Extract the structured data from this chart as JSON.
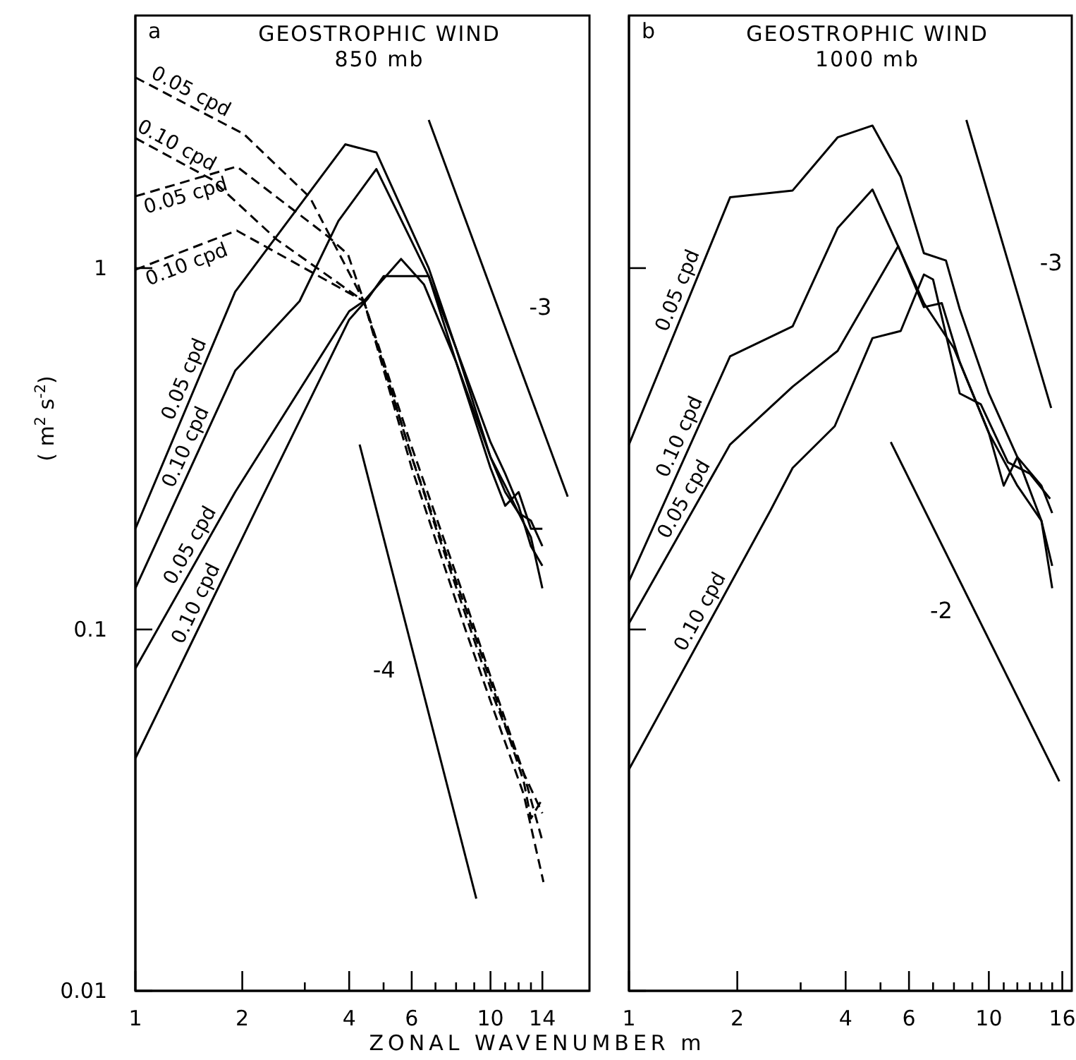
{
  "chart_data": [
    {
      "type": "line",
      "title": "GEOSTROPHIC WIND",
      "subtitle": "850 mb",
      "xlabel": "ZONAL WAVENUMBER  m",
      "ylabel": "( m$^{2}$ s$^{-2}$)",
      "log": "xy",
      "xlim": [
        1,
        19
      ],
      "ylim": [
        0.01,
        5
      ],
      "xticks": [
        1,
        2,
        {
          "value": 3,
          "label": null
        },
        4,
        {
          "value": 5,
          "label": null
        },
        6,
        {
          "value": 7,
          "label": null
        },
        {
          "value": 8,
          "label": null
        },
        {
          "value": 9,
          "label": null
        },
        10,
        {
          "value": 11,
          "label": null
        },
        {
          "value": 12,
          "label": null
        },
        {
          "value": 13,
          "label": null
        },
        14
      ],
      "yticks": [
        0.01,
        0.1,
        1
      ],
      "grid": false,
      "marker": "none",
      "annotations": [
        "a"
      ],
      "series": [
        {
          "name": "0.05 cpd",
          "color": "#000000",
          "x": [
            1,
            1.91,
            3.9,
            4.77,
            6.7,
            8,
            10,
            11,
            12,
            13,
            14
          ],
          "values": [
            0.19,
            0.86,
            2.2,
            2.09,
            1.0,
            0.6,
            0.33,
            0.27,
            0.22,
            0.17,
            0.15
          ]
        },
        {
          "name": "0.10 cpd",
          "color": "#000000",
          "x": [
            1,
            1.91,
            2.9,
            3.73,
            4.77,
            6.7,
            8,
            10,
            11,
            12,
            13,
            14
          ],
          "values": [
            0.13,
            0.52,
            0.81,
            1.35,
            1.88,
            0.95,
            0.6,
            0.3,
            0.25,
            0.21,
            0.18,
            0.13
          ]
        },
        {
          "name": "0.05 cpd",
          "color": "#000000",
          "x": [
            1,
            1.91,
            4,
            4.4,
            5.6,
            6.5,
            8,
            10,
            11,
            12,
            13,
            14
          ],
          "values": [
            0.078,
            0.24,
            0.76,
            0.81,
            1.06,
            0.9,
            0.55,
            0.3,
            0.24,
            0.21,
            0.2,
            0.17
          ]
        },
        {
          "name": "0.10 cpd",
          "color": "#000000",
          "x": [
            1,
            2.2,
            4,
            4.5,
            5,
            6.7,
            8,
            10,
            11,
            12,
            13,
            14
          ],
          "values": [
            0.044,
            0.217,
            0.72,
            0.82,
            0.95,
            0.95,
            0.55,
            0.28,
            0.22,
            0.24,
            0.19,
            0.19
          ]
        },
        {
          "name": "0.05 cpd",
          "color": "#000000",
          "line_style": "dashed",
          "x": [
            1,
            2.02,
            3.1,
            4.4,
            6,
            8.5,
            10.2,
            12.4,
            14.1
          ],
          "values": [
            3.37,
            2.35,
            1.57,
            0.81,
            0.28,
            0.1,
            0.06,
            0.035,
            0.02
          ]
        },
        {
          "name": "0.10 cpd",
          "color": "#000000",
          "line_style": "dashed",
          "x": [
            1,
            1.64,
            2.5,
            4.4,
            6,
            8.5,
            10.2,
            12.4,
            14
          ],
          "values": [
            2.29,
            1.76,
            1.2,
            0.81,
            0.3,
            0.11,
            0.065,
            0.04,
            0.026
          ]
        },
        {
          "name": "0.05 cpd",
          "color": "#000000",
          "line_style": "dashed",
          "x": [
            1,
            1.93,
            3.5,
            3.97,
            4.4,
            6,
            8.5,
            10.2,
            12.4,
            14
          ],
          "values": [
            1.58,
            1.91,
            1.22,
            1.09,
            0.81,
            0.32,
            0.12,
            0.07,
            0.04,
            0.031
          ]
        },
        {
          "name": "0.10 cpd",
          "color": "#000000",
          "line_style": "dashed",
          "x": [
            1,
            1.93,
            4.4,
            6,
            8.5,
            10.2,
            12.4,
            13,
            14
          ],
          "values": [
            0.99,
            1.27,
            0.81,
            0.3,
            0.115,
            0.068,
            0.038,
            0.03,
            0.034
          ]
        },
        {
          "name": "-3",
          "color": "#000000",
          "x": [
            6.7,
            16.5
          ],
          "values": [
            2.57,
            0.233
          ]
        },
        {
          "name": "-4",
          "color": "#000000",
          "x": [
            4.28,
            9.12
          ],
          "values": [
            0.325,
            0.018
          ]
        }
      ]
    },
    {
      "type": "line",
      "title": "GEOSTROPHIC WIND",
      "subtitle": "1000 mb",
      "log": "xy",
      "xlim": [
        1,
        17
      ],
      "ylim": [
        0.01,
        5
      ],
      "xticks": [
        1,
        2,
        {
          "value": 3,
          "label": null
        },
        4,
        {
          "value": 5,
          "label": null
        },
        6,
        {
          "value": 7,
          "label": null
        },
        {
          "value": 8,
          "label": null
        },
        {
          "value": 9,
          "label": null
        },
        10,
        {
          "value": 11,
          "label": null
        },
        {
          "value": 12,
          "label": null
        },
        {
          "value": 13,
          "label": null
        },
        {
          "value": 14,
          "label": null
        },
        {
          "value": 15,
          "label": null
        },
        16
      ],
      "yticks": [
        0.01,
        0.1,
        1
      ],
      "tick_labels": "x",
      "grid": false,
      "marker": "none",
      "annotations": [
        "b"
      ],
      "series": [
        {
          "name": "0.05 cpd",
          "color": "#000000",
          "x": [
            1,
            1.91,
            2.85,
            3.8,
            4.75,
            5.69,
            6.6,
            7.6,
            8.3,
            10,
            12,
            14,
            15
          ],
          "values": [
            0.325,
            1.57,
            1.64,
            2.3,
            2.48,
            1.79,
            1.1,
            1.05,
            0.77,
            0.45,
            0.3,
            0.2,
            0.15
          ]
        },
        {
          "name": "0.10 cpd",
          "color": "#000000",
          "x": [
            1,
            1.91,
            2.85,
            3.8,
            4.75,
            6.6,
            8,
            10,
            12,
            14,
            15
          ],
          "values": [
            0.136,
            0.57,
            0.69,
            1.29,
            1.65,
            0.8,
            0.6,
            0.35,
            0.25,
            0.2,
            0.13
          ]
        },
        {
          "name": "0.05 cpd",
          "color": "#000000",
          "x": [
            1,
            1.91,
            2.85,
            3.8,
            5.6,
            6.6,
            7.4,
            8.3,
            10,
            11,
            12,
            14,
            15
          ],
          "values": [
            0.104,
            0.325,
            0.47,
            0.59,
            1.15,
            0.78,
            0.8,
            0.55,
            0.35,
            0.25,
            0.3,
            0.25,
            0.21
          ]
        },
        {
          "name": "0.10 cpd",
          "color": "#000000",
          "x": [
            1,
            2.47,
            2.85,
            3.73,
            4.75,
            5.69,
            6.6,
            7,
            8.3,
            9.5,
            11.3,
            13,
            14.8
          ],
          "values": [
            0.041,
            0.213,
            0.28,
            0.365,
            0.64,
            0.67,
            0.96,
            0.93,
            0.45,
            0.42,
            0.29,
            0.27,
            0.23
          ]
        },
        {
          "name": "-3",
          "color": "#000000",
          "x": [
            8.66,
            14.9
          ],
          "values": [
            2.57,
            0.41
          ]
        },
        {
          "name": "-2",
          "color": "#000000",
          "x": [
            5.34,
            15.7
          ],
          "values": [
            0.33,
            0.038
          ]
        }
      ]
    }
  ]
}
